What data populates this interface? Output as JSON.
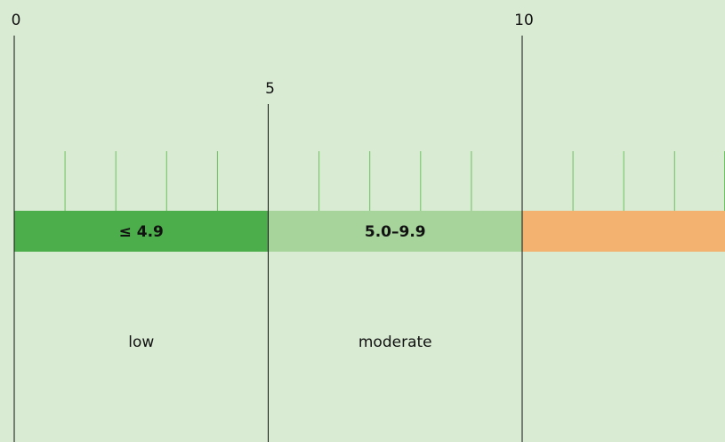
{
  "ticks": [
    0,
    5,
    10
  ],
  "bands": [
    {
      "label": "≤ 4.9",
      "category": "low",
      "color": "#4cae4a"
    },
    {
      "label": "5.0–9.9",
      "category": "moderate",
      "color": "#a6d49b"
    },
    {
      "color": "#f3b26f"
    }
  ]
}
